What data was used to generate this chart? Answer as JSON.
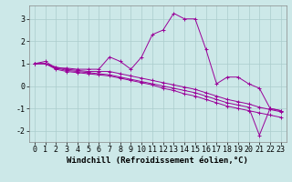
{
  "background_color": "#cce8e8",
  "grid_color": "#aacccc",
  "line_color": "#990099",
  "xlabel": "Windchill (Refroidissement éolien,°C)",
  "xlabel_fontsize": 6.5,
  "tick_fontsize": 6,
  "xlim": [
    -0.5,
    23.5
  ],
  "ylim": [
    -2.5,
    3.6
  ],
  "yticks": [
    -2,
    -1,
    0,
    1,
    2,
    3
  ],
  "xticks": [
    0,
    1,
    2,
    3,
    4,
    5,
    6,
    7,
    8,
    9,
    10,
    11,
    12,
    13,
    14,
    15,
    16,
    17,
    18,
    19,
    20,
    21,
    22,
    23
  ],
  "series": [
    [
      1.0,
      1.1,
      0.8,
      0.8,
      0.75,
      0.75,
      0.75,
      1.3,
      1.1,
      0.75,
      1.3,
      2.3,
      2.5,
      3.25,
      3.0,
      3.0,
      1.65,
      0.1,
      0.4,
      0.4,
      0.1,
      -0.1,
      -1.0,
      -1.1
    ],
    [
      1.0,
      1.0,
      0.85,
      0.75,
      0.7,
      0.65,
      0.65,
      0.65,
      0.55,
      0.45,
      0.35,
      0.25,
      0.15,
      0.05,
      -0.05,
      -0.15,
      -0.3,
      -0.45,
      -0.6,
      -0.7,
      -0.8,
      -0.95,
      -1.05,
      -1.15
    ],
    [
      1.0,
      1.0,
      0.8,
      0.7,
      0.65,
      0.6,
      0.55,
      0.5,
      0.4,
      0.3,
      0.2,
      0.1,
      0.0,
      -0.1,
      -0.2,
      -0.3,
      -0.45,
      -0.6,
      -0.75,
      -0.85,
      -0.95,
      -2.2,
      -1.0,
      -1.1
    ],
    [
      1.0,
      1.0,
      0.75,
      0.65,
      0.6,
      0.55,
      0.5,
      0.45,
      0.35,
      0.25,
      0.15,
      0.05,
      -0.1,
      -0.2,
      -0.35,
      -0.45,
      -0.6,
      -0.75,
      -0.9,
      -1.0,
      -1.1,
      -1.2,
      -1.3,
      -1.4
    ]
  ]
}
